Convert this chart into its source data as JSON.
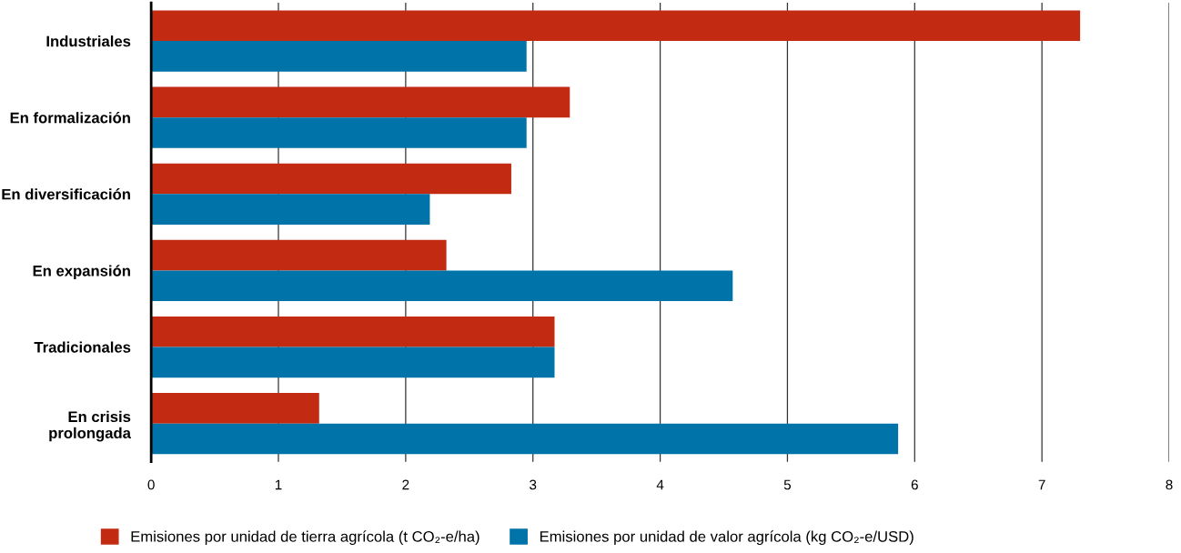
{
  "chart_data": {
    "type": "bar",
    "orientation": "horizontal",
    "categories": [
      "Industriales",
      "En formalización",
      "En diversificación",
      "En expansión",
      "Tradicionales",
      "En crisis\nprolongada"
    ],
    "series": [
      {
        "name": "Emisiones por unidad de tierra agrícola (t CO₂-e/ha)",
        "color": "#c22b12",
        "values": [
          7.3,
          3.29,
          2.83,
          2.32,
          3.17,
          1.32
        ]
      },
      {
        "name": "Emisiones por unidad de valor agrícola (kg CO₂-e/USD)",
        "color": "#0073a8",
        "values": [
          2.95,
          2.95,
          2.19,
          4.57,
          3.17,
          5.87
        ]
      }
    ],
    "xlim": [
      0,
      8
    ],
    "xticks": [
      0,
      1,
      2,
      3,
      4,
      5,
      6,
      7,
      8
    ],
    "grid": "x",
    "legend": "bottom"
  }
}
